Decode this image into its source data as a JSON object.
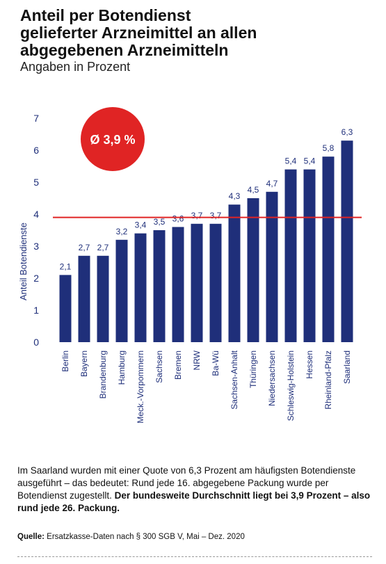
{
  "header": {
    "title": "Anteil per Botendienst\ngelieferter Arzneimittel an allen\nabgegebenen Arzneimitteln",
    "subtitle": "Angaben in Prozent"
  },
  "chart_data": {
    "type": "bar",
    "categories": [
      "Berlin",
      "Bayern",
      "Brandenburg",
      "Hamburg",
      "Meck.-Vorpommern",
      "Sachsen",
      "Bremen",
      "NRW",
      "Ba-Wü",
      "Sachsen-Anhalt",
      "Thüringen",
      "Niedersachsen",
      "Schleswig-Holstein",
      "Hessen",
      "Rheinland-Pfalz",
      "Saarland"
    ],
    "values": [
      2.1,
      2.7,
      2.7,
      3.2,
      3.4,
      3.5,
      3.6,
      3.7,
      3.7,
      4.3,
      4.5,
      4.7,
      5.4,
      5.4,
      5.8,
      6.3
    ],
    "value_labels": [
      "2,1",
      "2,7",
      "2,7",
      "3,2",
      "3,4",
      "3,5",
      "3,6",
      "3,7",
      "3,7",
      "4,3",
      "4,5",
      "4,7",
      "5,4",
      "5,4",
      "5,8",
      "6,3"
    ],
    "ylabel": "Anteil Botendienste",
    "ylim": [
      0,
      7
    ],
    "yticks": [
      0,
      1,
      2,
      3,
      4,
      5,
      6,
      7
    ],
    "average": 3.9,
    "average_label": "Ø 3,9 %",
    "grid": false,
    "bar_color": "#1f2f7a",
    "average_line_color": "#e02424",
    "badge_color": "#e02424"
  },
  "text": {
    "p1": "Im Saarland wurden mit einer Quote von 6,3 Prozent am häufigsten Botendienste ausgeführt – das bedeutet: Rund jede 16. abgegebene Packung wurde per Botendienst zugestellt. ",
    "p2": "Der bundesweite Durchschnitt liegt bei 3,9 Prozent – also rund jede 26. Packung."
  },
  "source": {
    "label": "Quelle:",
    "text": " Ersatzkasse-Daten nach § 300 SGB V, Mai – Dez. 2020"
  }
}
